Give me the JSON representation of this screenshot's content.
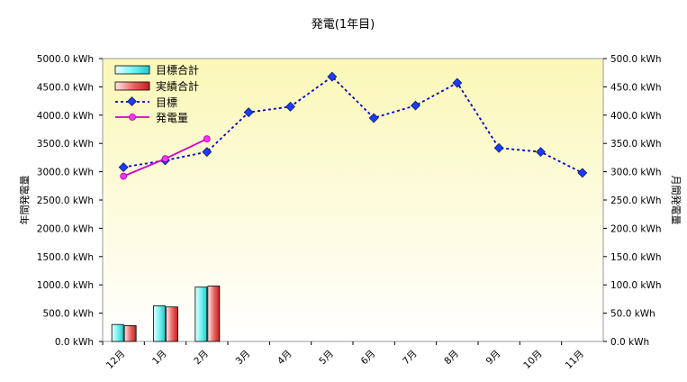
{
  "chart_data": {
    "type": "bar",
    "title": "発電(1年目)",
    "ylabel_left": "年間発電量",
    "ylabel_right": "月間発電量",
    "categories": [
      "12月",
      "1月",
      "2月",
      "3月",
      "4月",
      "5月",
      "6月",
      "7月",
      "8月",
      "9月",
      "10月",
      "11月"
    ],
    "left_axis": {
      "range": [
        0,
        5000
      ],
      "ticks": [
        "0.0 kWh",
        "500.0 kWh",
        "1000.0 kWh",
        "1500.0 kWh",
        "2000.0 kWh",
        "2500.0 kWh",
        "3000.0 kWh",
        "3500.0 kWh",
        "4000.0 kWh",
        "4500.0 kWh",
        "5000.0 kWh"
      ]
    },
    "right_axis": {
      "range": [
        0,
        500
      ],
      "ticks": [
        "0.0 kWh",
        "50.0 kWh",
        "100.0 kWh",
        "150.0 kWh",
        "200.0 kWh",
        "250.0 kWh",
        "300.0 kWh",
        "350.0 kWh",
        "400.0 kWh",
        "450.0 kWh",
        "500.0 kWh"
      ]
    },
    "series": [
      {
        "name": "目標合計",
        "kind": "bar",
        "axis": "left",
        "color": "#40e0e0",
        "values": [
          300,
          630,
          960,
          null,
          null,
          null,
          null,
          null,
          null,
          null,
          null,
          null
        ]
      },
      {
        "name": "実績合計",
        "kind": "bar",
        "axis": "left",
        "color": "#e04040",
        "values": [
          280,
          610,
          980,
          null,
          null,
          null,
          null,
          null,
          null,
          null,
          null,
          null
        ]
      },
      {
        "name": "目標",
        "kind": "line",
        "axis": "right",
        "style": "dashed",
        "color": "#0000cc",
        "marker_color": "#1a3cff",
        "values": [
          308,
          320,
          335,
          405,
          415,
          468,
          395,
          417,
          457,
          342,
          335,
          298
        ]
      },
      {
        "name": "発電量",
        "kind": "line",
        "axis": "right",
        "style": "solid",
        "color": "#cc00cc",
        "values": [
          292,
          323,
          358,
          null,
          null,
          null,
          null,
          null,
          null,
          null,
          null,
          null
        ]
      }
    ],
    "grid": false,
    "legend": "top-left"
  }
}
